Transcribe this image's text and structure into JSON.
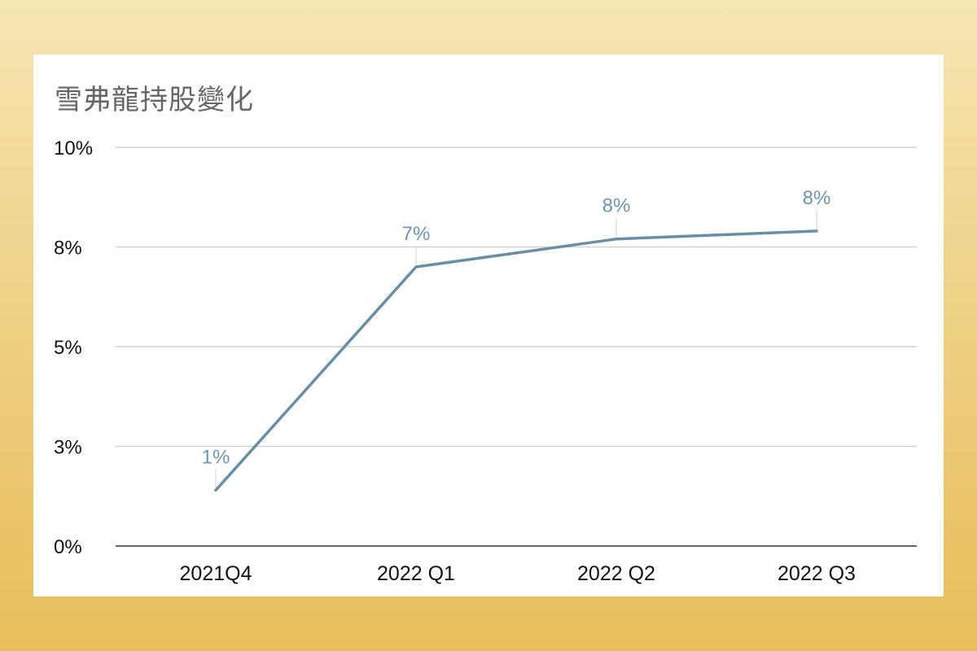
{
  "chart_data": {
    "type": "line",
    "title": "雪弗龍持股變化",
    "categories": [
      "2021Q4",
      "2022 Q1",
      "2022 Q2",
      "2022 Q3"
    ],
    "series": [
      {
        "values": [
          1.4,
          7.0,
          7.7,
          7.9
        ]
      }
    ],
    "data_labels": [
      "1%",
      "7%",
      "8%",
      "8%"
    ],
    "y_ticks": [
      0,
      2.5,
      5,
      7.5,
      10
    ],
    "y_tick_labels": [
      "0%",
      "3%",
      "5%",
      "8%",
      "10%"
    ],
    "ylim": [
      0,
      10
    ],
    "xlabel": "",
    "ylabel": "",
    "grid": true,
    "legend": "none",
    "colors": {
      "line": "#6a8ea3",
      "data_label": "#6f95ab",
      "grid": "#d2d2d2",
      "axis": "#333333"
    }
  }
}
